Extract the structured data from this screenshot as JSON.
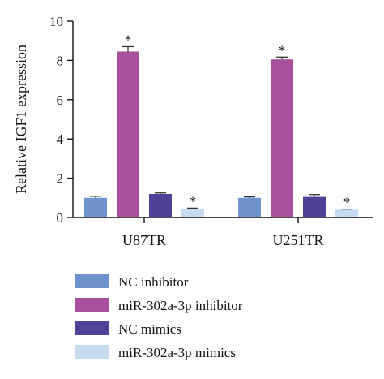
{
  "chart_data": {
    "type": "bar",
    "title": "",
    "xlabel": "",
    "ylabel": "Relative IGF1 expression",
    "ylim": [
      0,
      10
    ],
    "yticks": [
      0,
      2,
      4,
      6,
      8,
      10
    ],
    "categories": [
      "U87TR",
      "U251TR"
    ],
    "grid": false,
    "legend_position": "bottom-left",
    "significance_marker": "*",
    "series": [
      {
        "name": "NC inhibitor",
        "color": "#6f93cf",
        "values": [
          1.0,
          1.0
        ],
        "errors": [
          0.08,
          0.05
        ],
        "significant": [
          false,
          false
        ]
      },
      {
        "name": "miR-302a-3p inhibitor",
        "color": "#a8509a",
        "values": [
          8.45,
          8.05
        ],
        "errors": [
          0.25,
          0.12
        ],
        "significant": [
          true,
          true
        ]
      },
      {
        "name": "NC mimics",
        "color": "#4e4298",
        "values": [
          1.2,
          1.05
        ],
        "errors": [
          0.05,
          0.12
        ],
        "significant": [
          false,
          false
        ]
      },
      {
        "name": "miR-302a-3p mimics",
        "color": "#c6dbf1",
        "values": [
          0.45,
          0.4
        ],
        "errors": [
          0.03,
          0.03
        ],
        "significant": [
          true,
          true
        ]
      }
    ]
  }
}
